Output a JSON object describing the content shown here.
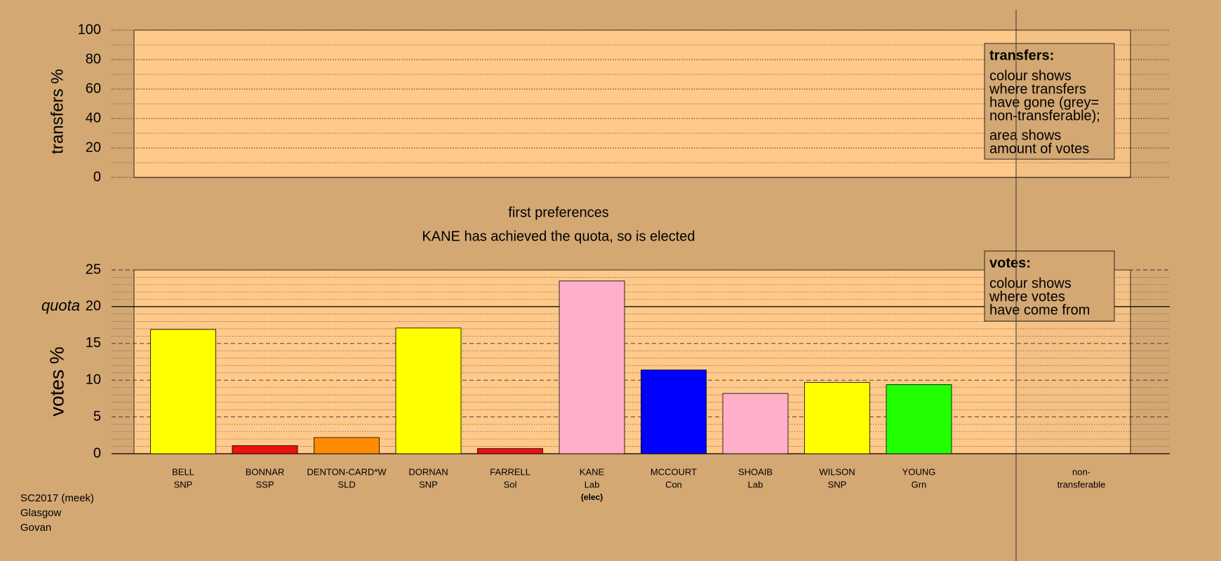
{
  "chart_data": [
    {
      "type": "empty",
      "ylabel": "transfers %",
      "ylim": [
        0,
        100
      ],
      "yticks": [
        0,
        20,
        40,
        60,
        80,
        100
      ],
      "minor_yticks": [
        10,
        30,
        50,
        70,
        90
      ],
      "grid": true,
      "legend": {
        "title": "transfers:",
        "paragraphs": [
          [
            "colour shows",
            "where transfers",
            "have gone (grey=",
            "non-transferable);"
          ],
          [
            "area shows",
            "amount of votes"
          ]
        ]
      }
    },
    {
      "type": "bar",
      "title": "first preferences",
      "subtitle": "KANE has achieved the quota, so is elected",
      "ylabel": "votes %",
      "ylim": [
        0,
        25
      ],
      "yticks": [
        0,
        5,
        10,
        15,
        20,
        25
      ],
      "minor_yticks": [
        1,
        2,
        3,
        4,
        6,
        7,
        8,
        9,
        11,
        12,
        13,
        14,
        16,
        17,
        18,
        19,
        21,
        22,
        23,
        24
      ],
      "grid": true,
      "quota": 20,
      "quota_label": "quota",
      "categories": [
        "BELL",
        "BONNAR",
        "DENTON-CARD*W",
        "DORNAN",
        "FARRELL",
        "KANE",
        "MCCOURT",
        "SHOAIB",
        "WILSON",
        "YOUNG"
      ],
      "parties": [
        "SNP",
        "SSP",
        "SLD",
        "SNP",
        "Sol",
        "Lab",
        "Con",
        "Lab",
        "SNP",
        "Grn"
      ],
      "notes": [
        null,
        null,
        null,
        null,
        null,
        "(elec)",
        null,
        null,
        null,
        null
      ],
      "values": [
        16.9,
        1.1,
        2.2,
        17.1,
        0.7,
        23.5,
        11.4,
        8.2,
        9.7,
        9.4
      ],
      "colors": [
        "#ffff00",
        "#ee1111",
        "#ff8c00",
        "#ffff00",
        "#ee1111",
        "#ffb0c8",
        "#0000ff",
        "#ffb0c8",
        "#ffff00",
        "#22ff00"
      ],
      "nontransferable_label": [
        "non-",
        "transferable"
      ],
      "legend": {
        "title": "votes:",
        "paragraphs": [
          [
            "colour shows",
            "where votes",
            "have come from"
          ]
        ]
      }
    }
  ],
  "footer": [
    "SC2017 (meek)",
    "Glasgow",
    "Govan"
  ]
}
